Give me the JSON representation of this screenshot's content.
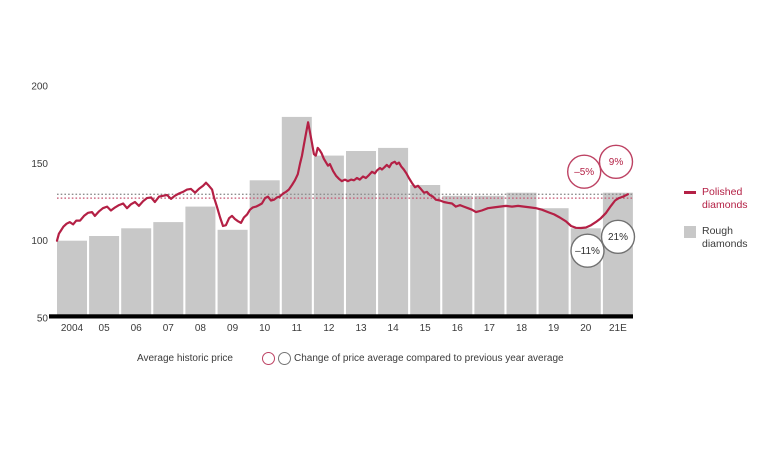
{
  "colors": {
    "accent_red": "#b42045",
    "red_circle_stroke": "#bd4263",
    "bar_gray": "#c8c8c8",
    "text_dark": "#3b3b3b",
    "annotation_dark": "#2e2e2e",
    "gray_circle_stroke": "#717171",
    "avg_gray_dotted": "#8f8f8f",
    "avg_red_dotted": "#c4526f",
    "axis_black": "#000000"
  },
  "legend": {
    "polished": "Polished diamonds",
    "rough": "Rough diamonds",
    "average_label": "Average historic price",
    "change_label": "Change of price average compared to previous year average"
  },
  "chart_data": {
    "type": "combo-bar-line",
    "title": "",
    "y_axis": {
      "ticks": [
        200,
        150,
        100,
        50
      ],
      "min": 50,
      "max": 205,
      "gridlines": false
    },
    "x_axis": {
      "categories": [
        "2004",
        "05",
        "06",
        "07",
        "08",
        "09",
        "10",
        "11",
        "12",
        "13",
        "14",
        "15",
        "16",
        "17",
        "18",
        "19",
        "20",
        "21E"
      ]
    },
    "rough_bars": {
      "name": "Rough diamonds",
      "values": [
        100,
        103,
        108,
        112,
        122,
        107,
        139,
        180,
        155,
        158,
        160,
        136,
        129,
        129,
        131,
        121,
        108,
        131
      ]
    },
    "average_historic_price": {
      "rough": 130,
      "polished": 127.5
    },
    "annotations": [
      {
        "label": "–5%",
        "series": "polished",
        "t": 2020.42,
        "v": 144.6
      },
      {
        "label": "9%",
        "series": "polished",
        "t": 2021.41,
        "v": 151
      },
      {
        "label": "–11%",
        "series": "rough",
        "t": 2020.52,
        "v": 93.5
      },
      {
        "label": "21%",
        "series": "rough",
        "t": 2021.47,
        "v": 102.5
      }
    ],
    "polished_line": {
      "name": "Polished diamonds",
      "points": [
        [
          2004.0,
          100
        ],
        [
          2004.06,
          104.5
        ],
        [
          2004.12,
          106.5
        ],
        [
          2004.2,
          109
        ],
        [
          2004.3,
          111
        ],
        [
          2004.4,
          112
        ],
        [
          2004.5,
          110.5
        ],
        [
          2004.6,
          113
        ],
        [
          2004.72,
          113
        ],
        [
          2004.84,
          116
        ],
        [
          2004.97,
          118
        ],
        [
          2005.09,
          118.5
        ],
        [
          2005.18,
          116
        ],
        [
          2005.31,
          119
        ],
        [
          2005.43,
          121
        ],
        [
          2005.56,
          122
        ],
        [
          2005.68,
          119.5
        ],
        [
          2005.81,
          121.5
        ],
        [
          2005.93,
          123
        ],
        [
          2006.06,
          124
        ],
        [
          2006.18,
          121
        ],
        [
          2006.3,
          123.5
        ],
        [
          2006.43,
          125
        ],
        [
          2006.55,
          122.5
        ],
        [
          2006.68,
          125.5
        ],
        [
          2006.8,
          127.5
        ],
        [
          2006.93,
          128
        ],
        [
          2007.05,
          125
        ],
        [
          2007.18,
          128.5
        ],
        [
          2007.3,
          129
        ],
        [
          2007.43,
          129.5
        ],
        [
          2007.55,
          127
        ],
        [
          2007.67,
          129
        ],
        [
          2007.8,
          130.5
        ],
        [
          2007.92,
          131.5
        ],
        [
          2008.05,
          133
        ],
        [
          2008.17,
          133.5
        ],
        [
          2008.3,
          131
        ],
        [
          2008.42,
          133.5
        ],
        [
          2008.55,
          135.5
        ],
        [
          2008.64,
          137.5
        ],
        [
          2008.73,
          135.5
        ],
        [
          2008.83,
          133
        ],
        [
          2008.89,
          128
        ],
        [
          2008.98,
          122
        ],
        [
          2009.08,
          115
        ],
        [
          2009.17,
          109.5
        ],
        [
          2009.26,
          110
        ],
        [
          2009.36,
          114.5
        ],
        [
          2009.45,
          116
        ],
        [
          2009.54,
          114
        ],
        [
          2009.64,
          112.5
        ],
        [
          2009.73,
          111.5
        ],
        [
          2009.82,
          115
        ],
        [
          2009.92,
          117
        ],
        [
          2010.01,
          120
        ],
        [
          2010.1,
          121.5
        ],
        [
          2010.2,
          122
        ],
        [
          2010.29,
          123
        ],
        [
          2010.38,
          124
        ],
        [
          2010.48,
          127.5
        ],
        [
          2010.57,
          128.5
        ],
        [
          2010.66,
          126
        ],
        [
          2010.76,
          126.5
        ],
        [
          2010.85,
          128
        ],
        [
          2010.94,
          128.5
        ],
        [
          2011.04,
          130.5
        ],
        [
          2011.13,
          131.5
        ],
        [
          2011.22,
          133
        ],
        [
          2011.32,
          136
        ],
        [
          2011.41,
          139
        ],
        [
          2011.5,
          143
        ],
        [
          2011.57,
          150
        ],
        [
          2011.63,
          155
        ],
        [
          2011.69,
          162
        ],
        [
          2011.75,
          169
        ],
        [
          2011.82,
          176.5
        ],
        [
          2011.88,
          170
        ],
        [
          2011.94,
          163
        ],
        [
          2012.0,
          156
        ],
        [
          2012.06,
          155
        ],
        [
          2012.12,
          160
        ],
        [
          2012.18,
          158.5
        ],
        [
          2012.24,
          156.5
        ],
        [
          2012.31,
          153
        ],
        [
          2012.38,
          150.5
        ],
        [
          2012.44,
          148.5
        ],
        [
          2012.5,
          149.5
        ],
        [
          2012.6,
          145
        ],
        [
          2012.69,
          142
        ],
        [
          2012.78,
          140
        ],
        [
          2012.87,
          138.5
        ],
        [
          2012.97,
          139.5
        ],
        [
          2013.06,
          138.5
        ],
        [
          2013.16,
          139.5
        ],
        [
          2013.25,
          139
        ],
        [
          2013.34,
          140.5
        ],
        [
          2013.43,
          139.5
        ],
        [
          2013.53,
          141.5
        ],
        [
          2013.62,
          140.5
        ],
        [
          2013.72,
          142.5
        ],
        [
          2013.81,
          144.5
        ],
        [
          2013.9,
          143.5
        ],
        [
          2013.97,
          145.5
        ],
        [
          2014.06,
          147
        ],
        [
          2014.12,
          146
        ],
        [
          2014.2,
          147.5
        ],
        [
          2014.27,
          149
        ],
        [
          2014.35,
          147.5
        ],
        [
          2014.42,
          150
        ],
        [
          2014.52,
          151
        ],
        [
          2014.58,
          149.5
        ],
        [
          2014.65,
          150.5
        ],
        [
          2014.72,
          148
        ],
        [
          2014.8,
          146
        ],
        [
          2014.88,
          143.5
        ],
        [
          2014.96,
          140.5
        ],
        [
          2015.05,
          137.5
        ],
        [
          2015.15,
          134.5
        ],
        [
          2015.24,
          135.5
        ],
        [
          2015.33,
          133.5
        ],
        [
          2015.43,
          131
        ],
        [
          2015.52,
          131.5
        ],
        [
          2015.61,
          129.5
        ],
        [
          2015.71,
          128.5
        ],
        [
          2015.8,
          126.5
        ],
        [
          2015.93,
          126
        ],
        [
          2016.05,
          125
        ],
        [
          2016.17,
          124.5
        ],
        [
          2016.3,
          124
        ],
        [
          2016.42,
          122
        ],
        [
          2016.55,
          123
        ],
        [
          2016.67,
          122
        ],
        [
          2016.8,
          121
        ],
        [
          2016.92,
          120
        ],
        [
          2017.05,
          118.5
        ],
        [
          2017.23,
          119.5
        ],
        [
          2017.42,
          121
        ],
        [
          2017.61,
          121.5
        ],
        [
          2017.79,
          122
        ],
        [
          2017.98,
          122.5
        ],
        [
          2018.17,
          122
        ],
        [
          2018.36,
          122.5
        ],
        [
          2018.54,
          122
        ],
        [
          2018.73,
          121.5
        ],
        [
          2018.92,
          121
        ],
        [
          2019.1,
          120
        ],
        [
          2019.29,
          118.5
        ],
        [
          2019.48,
          117
        ],
        [
          2019.66,
          115
        ],
        [
          2019.85,
          112.5
        ],
        [
          2020.01,
          109.5
        ],
        [
          2020.16,
          108.3
        ],
        [
          2020.32,
          108.2
        ],
        [
          2020.47,
          108.5
        ],
        [
          2020.63,
          110
        ],
        [
          2020.78,
          112
        ],
        [
          2020.94,
          114.5
        ],
        [
          2021.1,
          118
        ],
        [
          2021.25,
          122.5
        ],
        [
          2021.38,
          126
        ],
        [
          2021.5,
          127.5
        ],
        [
          2021.63,
          128.5
        ],
        [
          2021.78,
          130
        ]
      ]
    }
  }
}
